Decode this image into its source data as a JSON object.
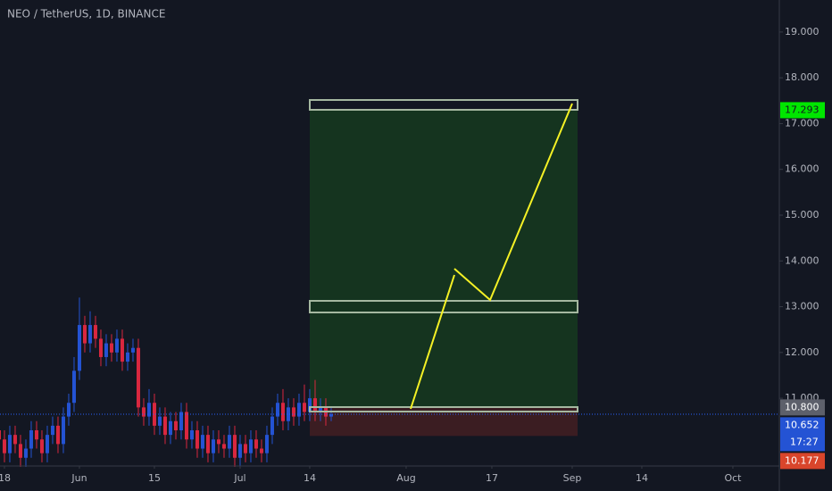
{
  "chart_data": {
    "type": "candlestick",
    "title": "NEO / TetherUS, 1D, BINANCE",
    "x": [
      -1,
      0,
      1,
      2,
      3,
      4,
      5,
      6,
      7,
      8,
      9,
      10,
      11,
      12,
      13,
      14,
      15,
      16,
      17,
      18,
      19,
      20,
      21,
      22,
      23,
      24,
      25,
      26,
      27,
      28,
      29,
      30,
      31,
      32,
      33,
      34,
      35,
      36,
      37,
      38,
      39,
      40,
      41,
      42,
      43,
      44,
      45,
      46,
      47,
      48,
      49,
      50,
      51,
      52,
      53,
      54,
      55,
      56,
      57,
      58,
      59,
      60,
      61
    ],
    "open": [
      10.3,
      10.1,
      9.8,
      10.2,
      10.0,
      9.7,
      9.9,
      10.3,
      10.1,
      9.8,
      10.2,
      10.4,
      10.0,
      10.6,
      10.9,
      11.6,
      12.6,
      12.2,
      12.6,
      12.3,
      11.9,
      12.2,
      12.0,
      12.3,
      11.8,
      12.0,
      12.1,
      10.8,
      10.6,
      10.9,
      10.4,
      10.6,
      10.2,
      10.5,
      10.3,
      10.7,
      10.1,
      10.3,
      9.9,
      10.2,
      9.8,
      10.1,
      10.0,
      9.9,
      10.2,
      9.7,
      10.0,
      9.8,
      10.1,
      9.9,
      9.8,
      10.2,
      10.6,
      10.9,
      10.5,
      10.8,
      10.6,
      10.9,
      10.7,
      11.0,
      10.7,
      10.8,
      10.6
    ],
    "high": [
      10.5,
      10.3,
      10.4,
      10.4,
      10.2,
      10.1,
      10.5,
      10.5,
      10.3,
      10.4,
      10.6,
      10.6,
      10.8,
      11.1,
      11.9,
      13.2,
      12.8,
      12.9,
      12.8,
      12.5,
      12.4,
      12.4,
      12.5,
      12.5,
      12.2,
      12.3,
      12.3,
      11.0,
      11.2,
      11.1,
      10.8,
      10.8,
      10.7,
      10.7,
      10.9,
      10.9,
      10.5,
      10.5,
      10.4,
      10.4,
      10.3,
      10.3,
      10.2,
      10.4,
      10.4,
      10.2,
      10.2,
      10.3,
      10.3,
      10.1,
      10.4,
      10.8,
      11.1,
      11.2,
      11.0,
      11.0,
      11.1,
      11.3,
      11.2,
      11.4,
      11.0,
      11.0,
      10.8
    ],
    "low": [
      9.9,
      9.6,
      9.6,
      9.8,
      9.5,
      9.5,
      9.7,
      9.9,
      9.6,
      9.6,
      10.0,
      9.8,
      9.8,
      10.4,
      10.7,
      11.4,
      12.0,
      12.0,
      12.1,
      11.7,
      11.7,
      11.8,
      11.8,
      11.6,
      11.6,
      11.8,
      10.6,
      10.4,
      10.4,
      10.2,
      10.2,
      10.0,
      10.0,
      10.1,
      10.1,
      9.9,
      9.9,
      9.7,
      9.7,
      9.6,
      9.6,
      9.8,
      9.7,
      9.7,
      9.5,
      9.5,
      9.6,
      9.6,
      9.7,
      9.6,
      9.6,
      10.0,
      10.4,
      10.3,
      10.3,
      10.4,
      10.4,
      10.5,
      10.5,
      10.5,
      10.5,
      10.4,
      10.5
    ],
    "close": [
      10.1,
      9.8,
      10.2,
      10.0,
      9.7,
      9.9,
      10.3,
      10.1,
      9.8,
      10.2,
      10.4,
      10.0,
      10.6,
      10.9,
      11.6,
      12.6,
      12.2,
      12.6,
      12.3,
      11.9,
      12.2,
      12.0,
      12.3,
      11.8,
      12.0,
      12.1,
      10.8,
      10.6,
      10.9,
      10.4,
      10.6,
      10.2,
      10.5,
      10.3,
      10.7,
      10.1,
      10.3,
      9.9,
      10.2,
      9.8,
      10.1,
      10.0,
      9.9,
      10.2,
      9.7,
      10.0,
      9.8,
      10.1,
      9.9,
      9.8,
      10.2,
      10.6,
      10.9,
      10.5,
      10.8,
      10.6,
      10.9,
      10.7,
      11.0,
      10.7,
      10.8,
      10.6,
      10.65
    ],
    "up_color": "#2453d4",
    "down_color": "#d9273f",
    "xlim": [
      -0.83,
      144.67
    ],
    "xticks": [
      {
        "value": 0,
        "label": "18"
      },
      {
        "value": 14,
        "label": "Jun"
      },
      {
        "value": 28,
        "label": "15"
      },
      {
        "value": 44,
        "label": "Jul"
      },
      {
        "value": 57,
        "label": "14"
      },
      {
        "value": 75,
        "label": "Aug"
      },
      {
        "value": 91,
        "label": "17"
      },
      {
        "value": 106,
        "label": "Sep"
      },
      {
        "value": 119,
        "label": "14"
      },
      {
        "value": 136,
        "label": "Oct"
      }
    ],
    "ylim": [
      9.52,
      19.7
    ],
    "yticks": [
      {
        "value": 11,
        "label": "11.000"
      },
      {
        "value": 12,
        "label": "12.000"
      },
      {
        "value": 13,
        "label": "13.000"
      },
      {
        "value": 14,
        "label": "14.000"
      },
      {
        "value": 15,
        "label": "15.000"
      },
      {
        "value": 16,
        "label": "16.000"
      },
      {
        "value": 17,
        "label": "17.000"
      },
      {
        "value": 18,
        "label": "18.000"
      },
      {
        "value": 19,
        "label": "19.000"
      }
    ],
    "position": {
      "target": 17.293,
      "entry": 10.8,
      "stop": 10.177
    },
    "price_labels": [
      {
        "value": 17.293,
        "label": "17.293",
        "color": "#00e600"
      },
      {
        "value": 10.8,
        "label": "10.800",
        "color": "#5d606b"
      },
      {
        "value": 10.652,
        "label": "10.652",
        "color": "#2453d4",
        "countdown": "17:27"
      },
      {
        "value": 10.177,
        "label": "10.177",
        "color": "#d9452b"
      }
    ],
    "current_price_color": "#2962ff"
  }
}
